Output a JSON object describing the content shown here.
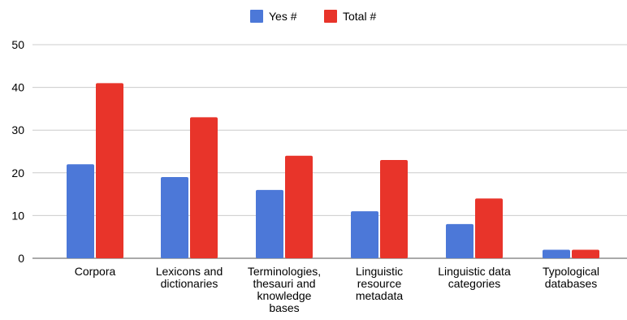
{
  "chart_data": {
    "type": "bar",
    "title": "",
    "xlabel": "",
    "ylabel": "",
    "ylim": [
      0,
      50
    ],
    "yticks": [
      0,
      10,
      20,
      30,
      40,
      50
    ],
    "grid": true,
    "legend_position": "top-center",
    "categories": [
      [
        "Corpora"
      ],
      [
        "Lexicons and",
        "dictionaries"
      ],
      [
        "Terminologies,",
        "thesauri and",
        "knowledge",
        "bases"
      ],
      [
        "Linguistic",
        "resource",
        "metadata"
      ],
      [
        "Linguistic data",
        "categories"
      ],
      [
        "Typological",
        "databases"
      ]
    ],
    "series": [
      {
        "name": "Yes #",
        "color": "#4c78d8",
        "values": [
          22,
          19,
          16,
          11,
          8,
          2
        ]
      },
      {
        "name": "Total #",
        "color": "#e8342a",
        "values": [
          41,
          33,
          24,
          23,
          14,
          2
        ]
      }
    ]
  }
}
